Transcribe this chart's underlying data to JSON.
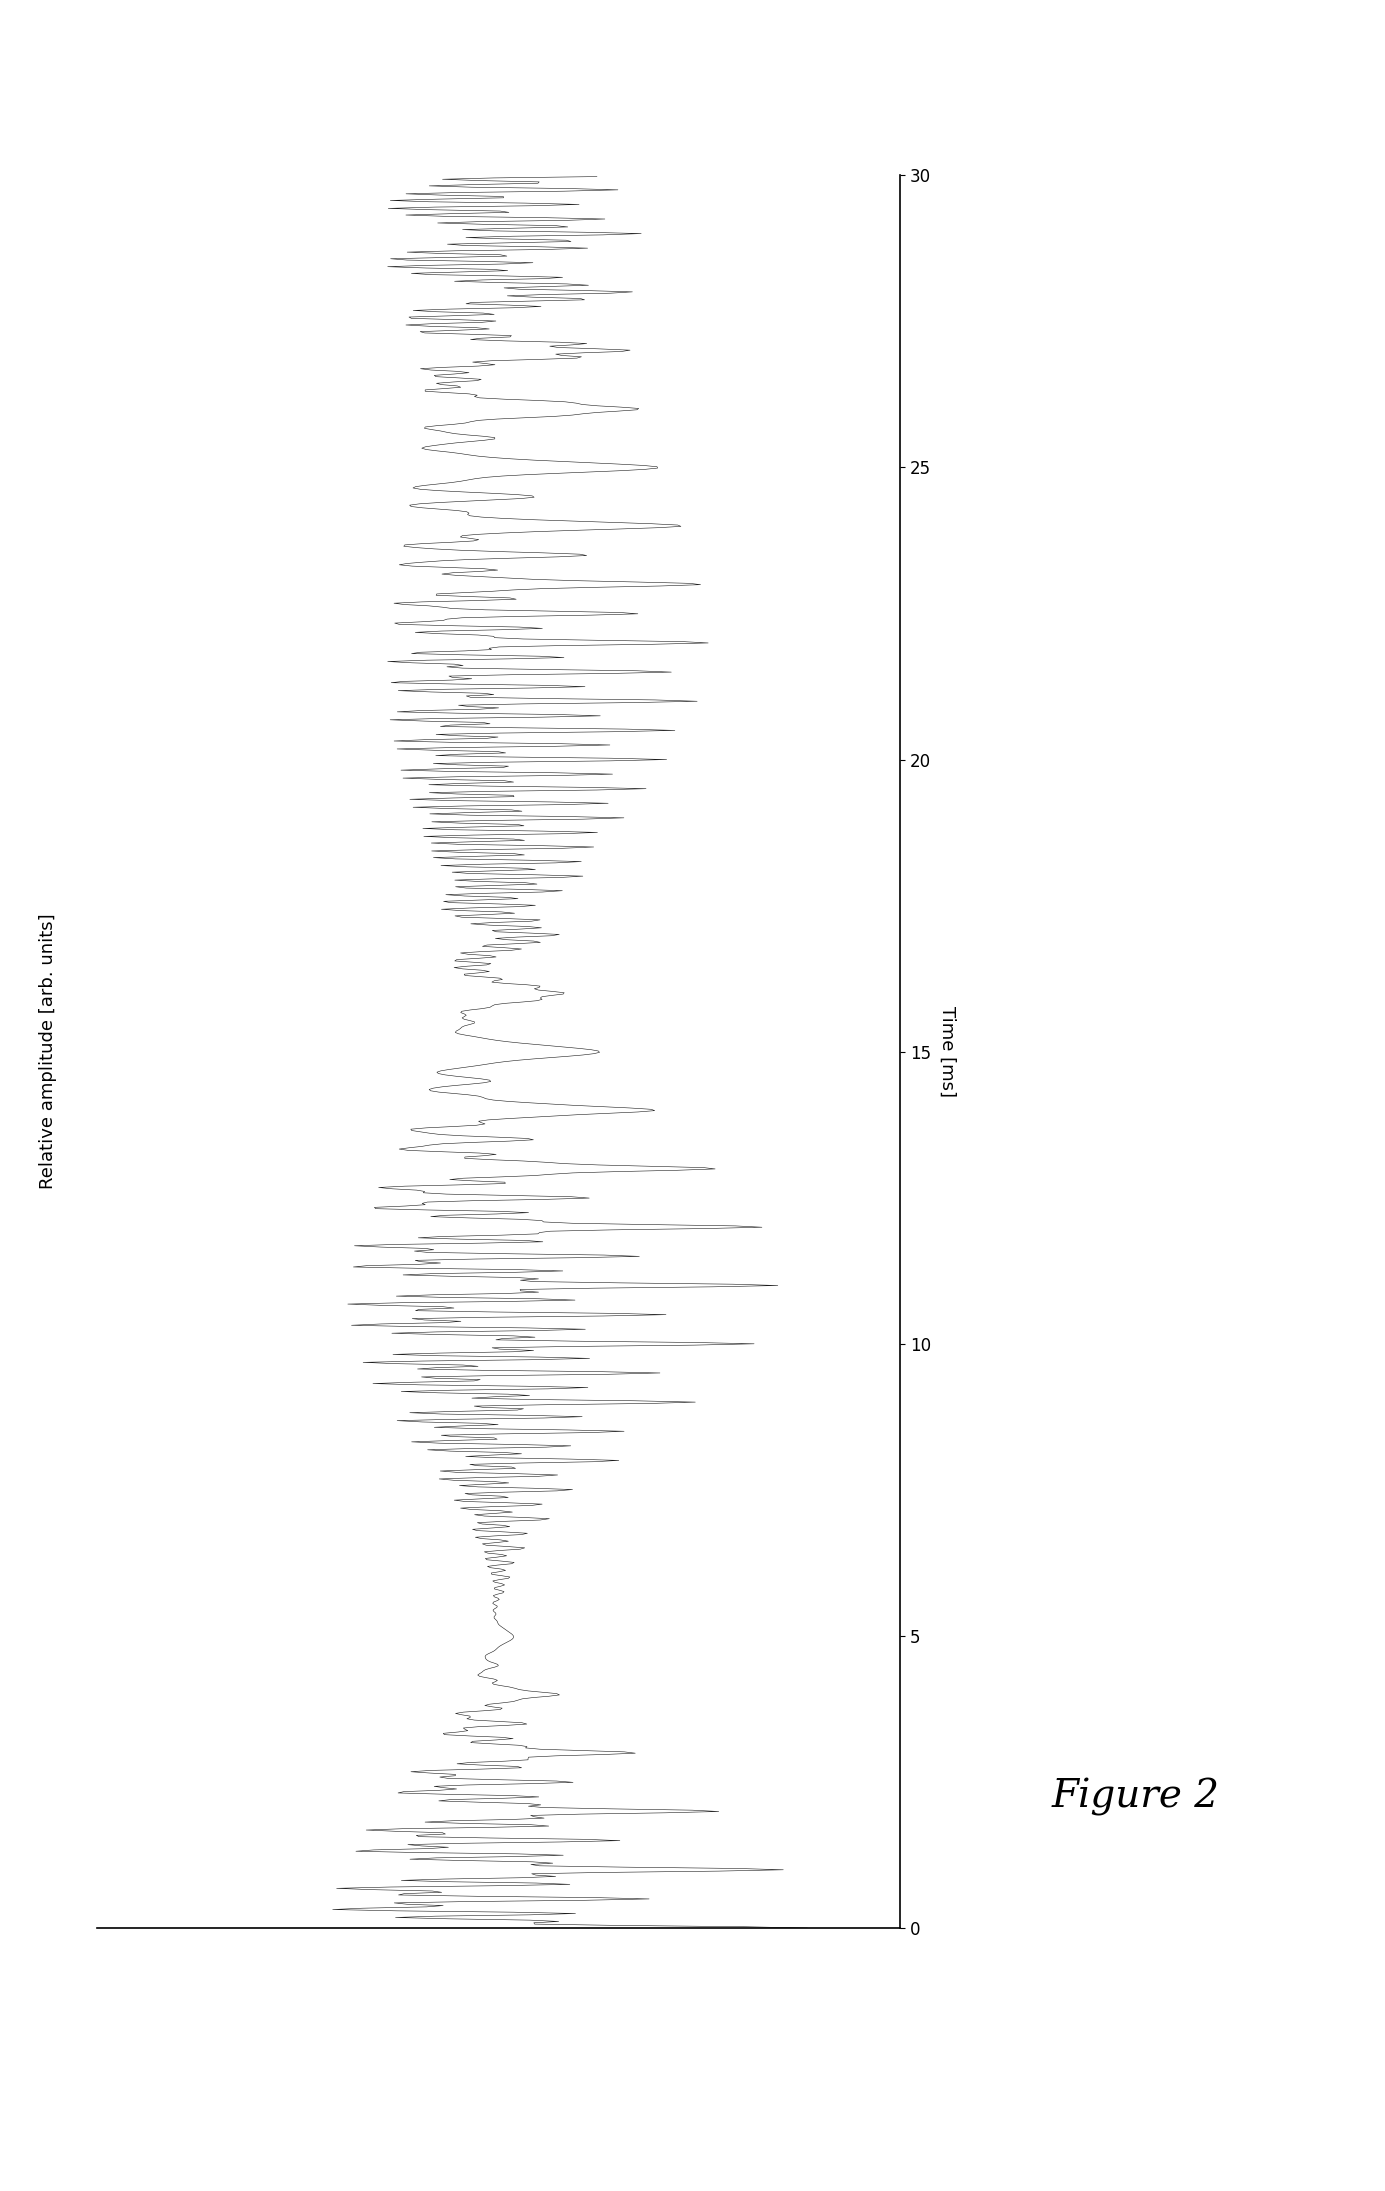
{
  "title": "Figure 2",
  "ylabel_rotated": "Relative amplitude [arb. units]",
  "xlabel": "Time [ms]",
  "xlabel_label": "Time [ms]",
  "time_label": "Time [ms]",
  "amp_label": "Relative amplitude [arb. units]",
  "background_color": "#ffffff",
  "line_color": "#1a1a1a",
  "line_width": 0.4,
  "sample_rate": 44100,
  "duration_ms": 30,
  "carrier_freqs_hz": [
    1000,
    2000,
    4000,
    8000
  ],
  "modulation_freqs_hz": [
    77,
    85,
    93,
    101
  ],
  "modulation_depth": 1.0,
  "figure2_fontsize": 28,
  "axis_label_fontsize": 13,
  "tick_fontsize": 12,
  "xlim": [
    0,
    30
  ],
  "yticks": [
    0,
    5,
    10,
    15,
    20,
    25,
    30
  ]
}
